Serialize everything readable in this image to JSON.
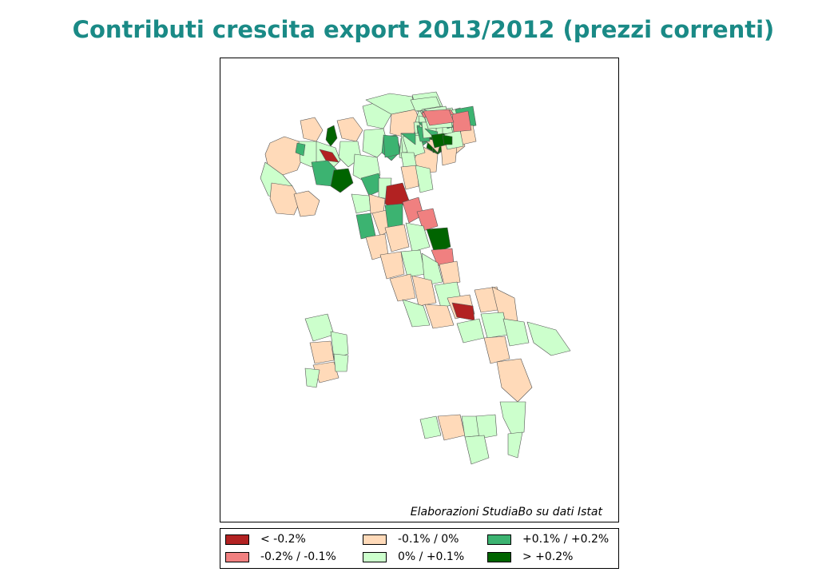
{
  "title": "Contributi crescita export 2013/2012 (prezzi correnti)",
  "credit": "Elaborazioni StudiaBo su dati Istat",
  "legend": [
    {
      "label": "< -0.2%",
      "color": "#b22222"
    },
    {
      "label": "-0.2% / -0.1%",
      "color": "#f08080"
    },
    {
      "label": "-0.1% / 0%",
      "color": "#ffdab9"
    },
    {
      "label": "0% / +0.1%",
      "color": "#ccffcc"
    },
    {
      "label": "+0.1% / +0.2%",
      "color": "#3cb371"
    },
    {
      "label": "> +0.2%",
      "color": "#006400"
    }
  ]
}
